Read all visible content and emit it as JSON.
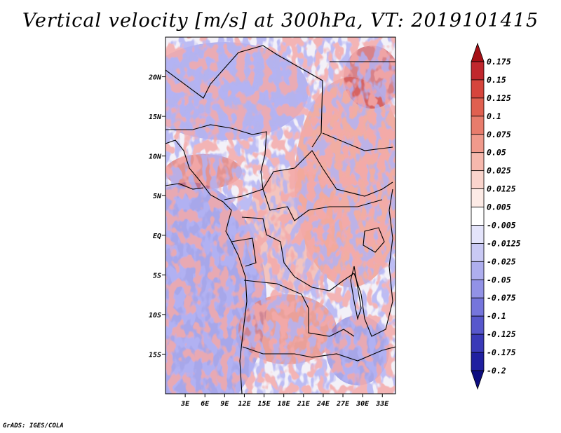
{
  "title": "Vertical velocity [m/s] at 300hPa, VT: 2019101415",
  "footer": "GrADS: IGES/COLA",
  "chart_data": {
    "type": "heatmap",
    "title": "Vertical velocity [m/s] at 300hPa, VT: 2019101415",
    "variable": "Vertical velocity",
    "units": "m/s",
    "level": "300hPa",
    "valid_time": "2019101415",
    "lon_range": [
      0,
      35
    ],
    "lat_range": [
      -20,
      25
    ],
    "x_ticks": [
      "3E",
      "6E",
      "9E",
      "12E",
      "15E",
      "18E",
      "21E",
      "24E",
      "27E",
      "30E",
      "33E"
    ],
    "x_tick_values": [
      3,
      6,
      9,
      12,
      15,
      18,
      21,
      24,
      27,
      30,
      33
    ],
    "y_ticks": [
      "20N",
      "15N",
      "10N",
      "5N",
      "EQ",
      "5S",
      "10S",
      "15S"
    ],
    "y_tick_values": [
      20,
      15,
      10,
      5,
      0,
      -5,
      -10,
      -15
    ],
    "colorbar": {
      "labels": [
        "0.175",
        "0.15",
        "0.125",
        "0.1",
        "0.075",
        "0.05",
        "0.025",
        "0.0125",
        "0.005",
        "-0.005",
        "-0.0125",
        "-0.025",
        "-0.05",
        "-0.075",
        "-0.1",
        "-0.125",
        "-0.175",
        "-0.2"
      ],
      "colors": [
        "#a50f15",
        "#c0272d",
        "#d6453c",
        "#e06050",
        "#e87c6c",
        "#f09a8c",
        "#f6b8ad",
        "#fad4cc",
        "#fdebe6",
        "#ffffff",
        "#e4e4fb",
        "#c9c9f4",
        "#aeaeee",
        "#9292e6",
        "#7575dc",
        "#5757cc",
        "#3a3ab8",
        "#2020a0",
        "#0d0d80"
      ]
    }
  }
}
